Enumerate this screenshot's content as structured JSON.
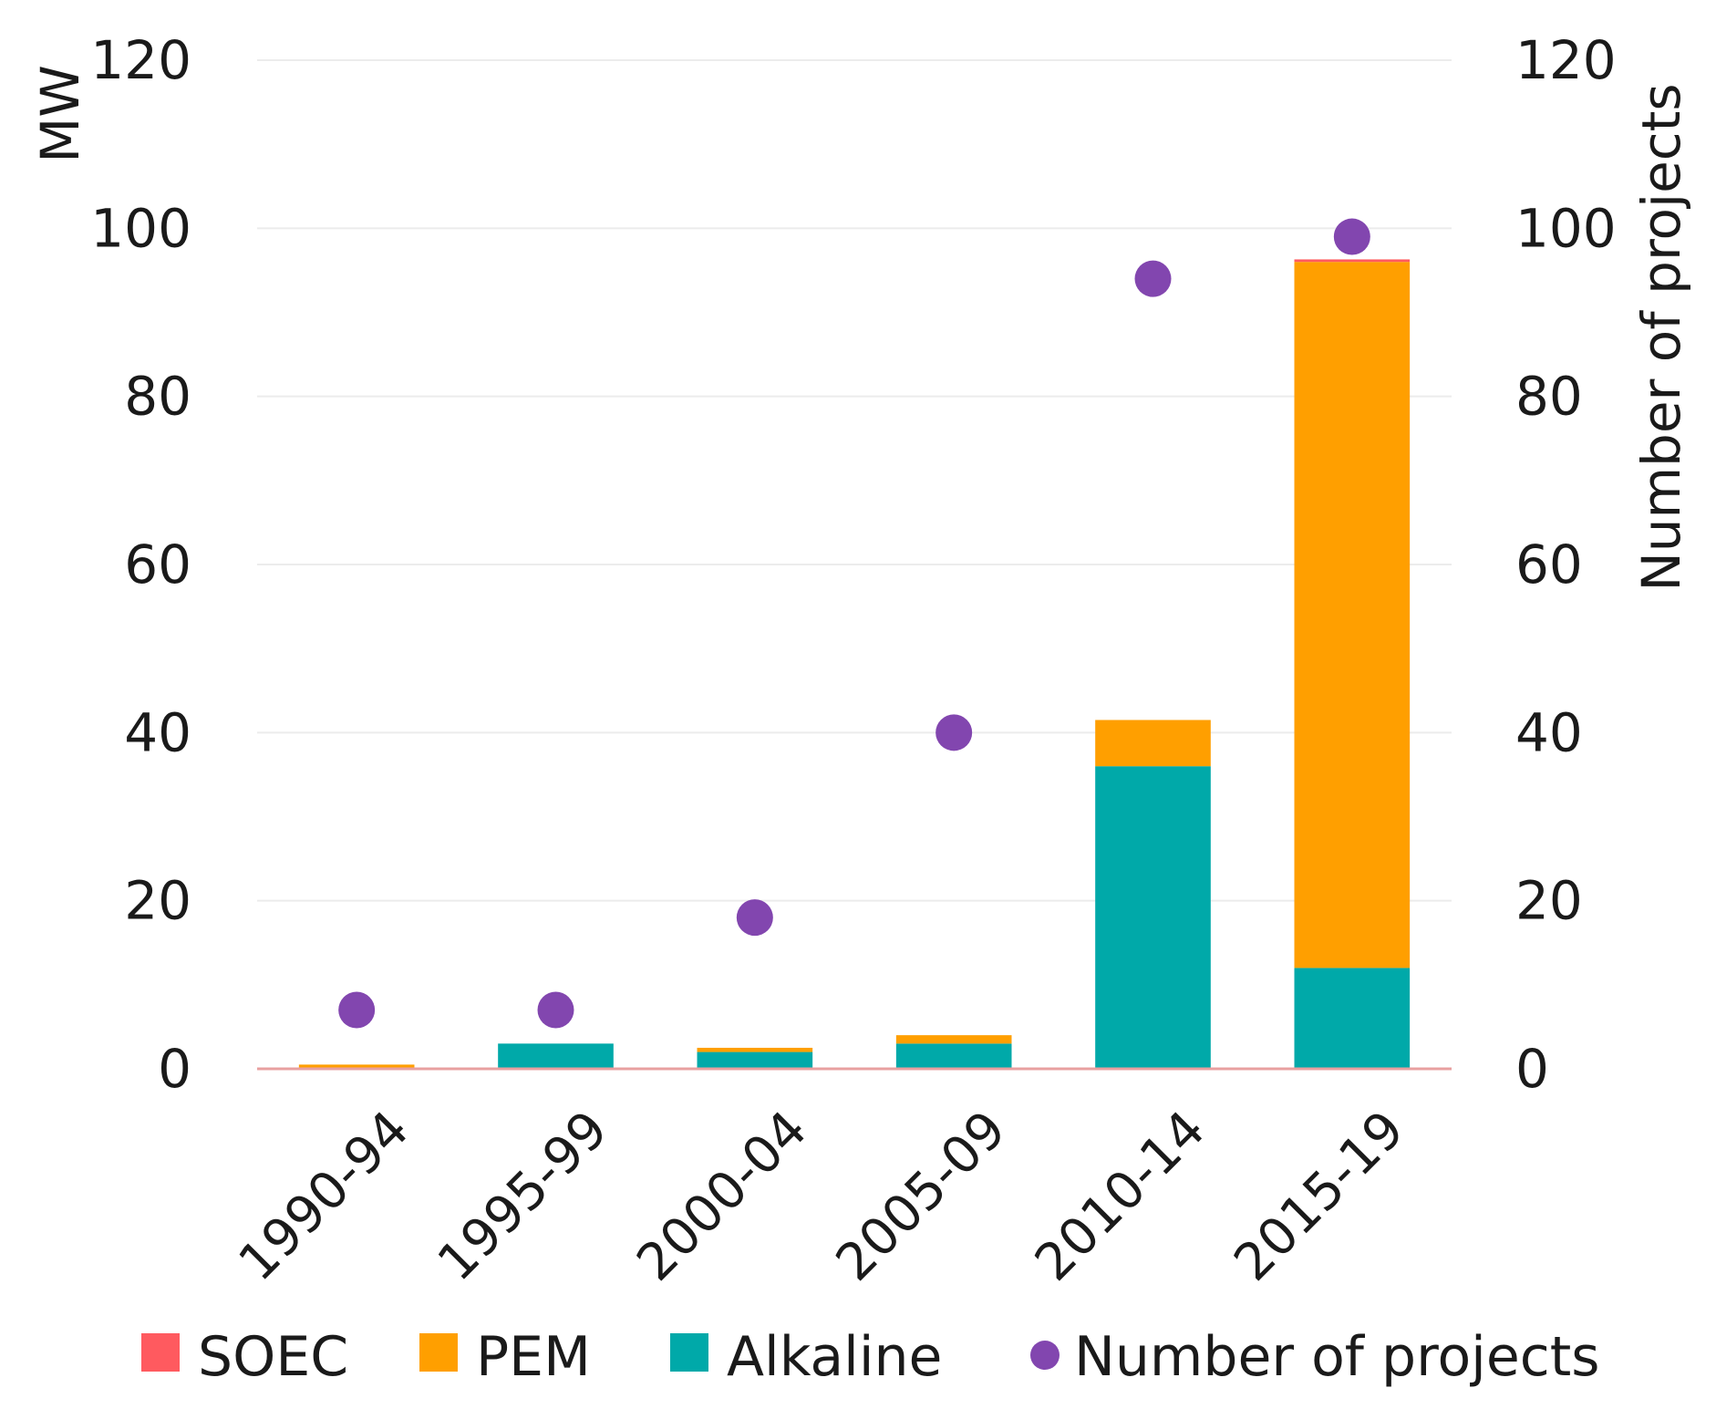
{
  "chart_data": {
    "type": "bar",
    "stacked": true,
    "categories": [
      "1990-94",
      "1995-99",
      "2000-04",
      "2005-09",
      "2010-14",
      "2015-19"
    ],
    "series": [
      {
        "name": "Alkaline",
        "color": "#00A9A9",
        "values": [
          0,
          3,
          2,
          3,
          36,
          12
        ]
      },
      {
        "name": "PEM",
        "color": "#FF9F00",
        "values": [
          0.5,
          0,
          0.5,
          1,
          5.5,
          84
        ]
      },
      {
        "name": "SOEC",
        "color": "#FF5A5F",
        "values": [
          0,
          0,
          0,
          0,
          0,
          0.3
        ]
      }
    ],
    "secondary_series": {
      "name": "Number of projects",
      "type": "scatter",
      "color": "#8246AF",
      "values": [
        7,
        7,
        18,
        40,
        94,
        99
      ]
    },
    "ylabel": "MW",
    "ylabel_right": "Number of projects",
    "ylim": [
      0,
      120
    ],
    "ylim_right": [
      0,
      120
    ],
    "yticks": [
      "0",
      "20",
      "40",
      "60",
      "80",
      "100",
      "120"
    ],
    "yticks_right": [
      "0",
      "20",
      "40",
      "60",
      "80",
      "100",
      "120"
    ],
    "legend": {
      "position": "bottom",
      "items": [
        {
          "label": "SOEC",
          "color": "#FF5A5F",
          "marker": "square"
        },
        {
          "label": "PEM",
          "color": "#FF9F00",
          "marker": "square"
        },
        {
          "label": "Alkaline",
          "color": "#00A9A9",
          "marker": "square"
        },
        {
          "label": "Number of projects",
          "color": "#8246AF",
          "marker": "circle"
        }
      ]
    },
    "grid": true
  }
}
